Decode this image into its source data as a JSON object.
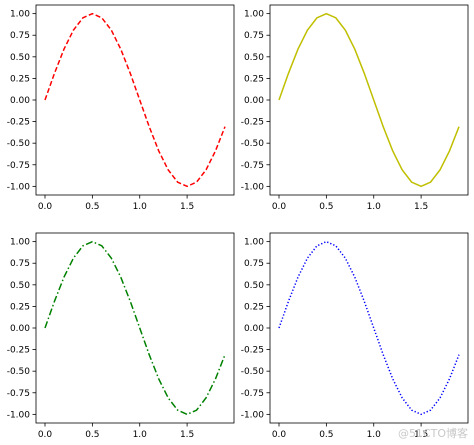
{
  "chart_data": [
    {
      "type": "line",
      "linestyle": "dashed",
      "color": "#ff0000",
      "x": [
        0.0,
        0.1,
        0.2,
        0.3,
        0.4,
        0.5,
        0.6,
        0.7,
        0.8,
        0.9,
        1.0,
        1.1,
        1.2,
        1.3,
        1.4,
        1.5,
        1.6,
        1.7,
        1.8,
        1.9
      ],
      "y": [
        0.0,
        0.309,
        0.588,
        0.809,
        0.951,
        1.0,
        0.951,
        0.809,
        0.588,
        0.309,
        0.0,
        -0.309,
        -0.588,
        -0.809,
        -0.951,
        -1.0,
        -0.951,
        -0.809,
        -0.588,
        -0.309
      ],
      "xlim": [
        -0.095,
        1.995
      ],
      "ylim": [
        -1.1,
        1.1
      ],
      "xticks": [
        "0.0",
        "0.5",
        "1.0",
        "1.5"
      ],
      "yticks": [
        "1.00",
        "0.75",
        "0.50",
        "0.25",
        "0.00",
        "-0.25",
        "-0.50",
        "-0.75",
        "-1.00"
      ],
      "grid": false
    },
    {
      "type": "line",
      "linestyle": "solid",
      "color": "#bfbf00",
      "x": [
        0.0,
        0.1,
        0.2,
        0.3,
        0.4,
        0.5,
        0.6,
        0.7,
        0.8,
        0.9,
        1.0,
        1.1,
        1.2,
        1.3,
        1.4,
        1.5,
        1.6,
        1.7,
        1.8,
        1.9
      ],
      "y": [
        0.0,
        0.309,
        0.588,
        0.809,
        0.951,
        1.0,
        0.951,
        0.809,
        0.588,
        0.309,
        0.0,
        -0.309,
        -0.588,
        -0.809,
        -0.951,
        -1.0,
        -0.951,
        -0.809,
        -0.588,
        -0.309
      ],
      "xlim": [
        -0.095,
        1.995
      ],
      "ylim": [
        -1.1,
        1.1
      ],
      "xticks": [
        "0.0",
        "0.5",
        "1.0",
        "1.5"
      ],
      "yticks": [
        "1.00",
        "0.75",
        "0.50",
        "0.25",
        "0.00",
        "-0.25",
        "-0.50",
        "-0.75",
        "-1.00"
      ],
      "grid": false
    },
    {
      "type": "line",
      "linestyle": "dashdot",
      "color": "#008000",
      "x": [
        0.0,
        0.1,
        0.2,
        0.3,
        0.4,
        0.5,
        0.6,
        0.7,
        0.8,
        0.9,
        1.0,
        1.1,
        1.2,
        1.3,
        1.4,
        1.5,
        1.6,
        1.7,
        1.8,
        1.9
      ],
      "y": [
        0.0,
        0.309,
        0.588,
        0.809,
        0.951,
        1.0,
        0.951,
        0.809,
        0.588,
        0.309,
        0.0,
        -0.309,
        -0.588,
        -0.809,
        -0.951,
        -1.0,
        -0.951,
        -0.809,
        -0.588,
        -0.309
      ],
      "xlim": [
        -0.095,
        1.995
      ],
      "ylim": [
        -1.1,
        1.1
      ],
      "xticks": [
        "0.0",
        "0.5",
        "1.0",
        "1.5"
      ],
      "yticks": [
        "1.00",
        "0.75",
        "0.50",
        "0.25",
        "0.00",
        "-0.25",
        "-0.50",
        "-0.75",
        "-1.00"
      ],
      "grid": false
    },
    {
      "type": "line",
      "linestyle": "dotted",
      "color": "#0000ff",
      "x": [
        0.0,
        0.1,
        0.2,
        0.3,
        0.4,
        0.5,
        0.6,
        0.7,
        0.8,
        0.9,
        1.0,
        1.1,
        1.2,
        1.3,
        1.4,
        1.5,
        1.6,
        1.7,
        1.8,
        1.9
      ],
      "y": [
        0.0,
        0.309,
        0.588,
        0.809,
        0.951,
        1.0,
        0.951,
        0.809,
        0.588,
        0.309,
        0.0,
        -0.309,
        -0.588,
        -0.809,
        -0.951,
        -1.0,
        -0.951,
        -0.809,
        -0.588,
        -0.309
      ],
      "xlim": [
        -0.095,
        1.995
      ],
      "ylim": [
        -1.1,
        1.1
      ],
      "xticks": [
        "0.0",
        "0.5",
        "1.0",
        "1.5"
      ],
      "yticks": [
        "1.00",
        "0.75",
        "0.50",
        "0.25",
        "0.00",
        "-0.25",
        "-0.50",
        "-0.75",
        "-1.00"
      ],
      "grid": false
    }
  ],
  "watermark": "@51CTO博客"
}
